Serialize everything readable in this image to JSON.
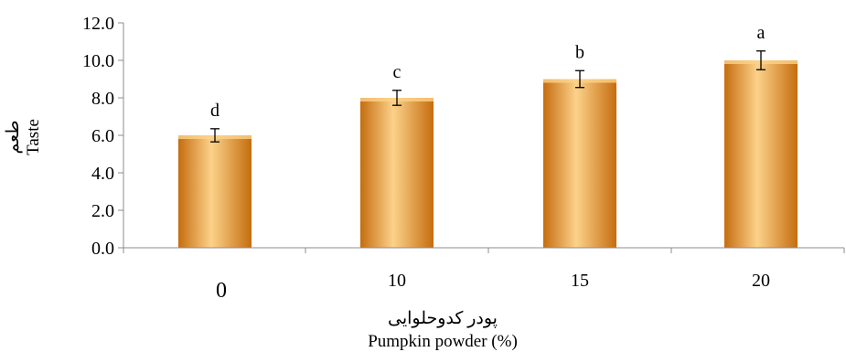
{
  "chart_data": {
    "type": "bar",
    "categories": [
      "0",
      "10",
      "15",
      "20"
    ],
    "values": [
      6.0,
      8.0,
      9.0,
      10.0
    ],
    "error": [
      0.35,
      0.4,
      0.45,
      0.5
    ],
    "significance_letters": [
      "d",
      "c",
      "b",
      "a"
    ],
    "ylim": [
      0,
      12
    ],
    "yticks": [
      "0.0",
      "2.0",
      "4.0",
      "6.0",
      "8.0",
      "10.0",
      "12.0"
    ],
    "ylabel_fa": "طعم",
    "ylabel": "Taste",
    "xlabel_fa": "پودر کدوحلوایی",
    "xlabel": "Pumpkin powder (%)",
    "grid": false,
    "bar_color": "#f5a02a",
    "bar_highlight": "#fcd28a",
    "bar_shadow": "#c56d0f"
  }
}
